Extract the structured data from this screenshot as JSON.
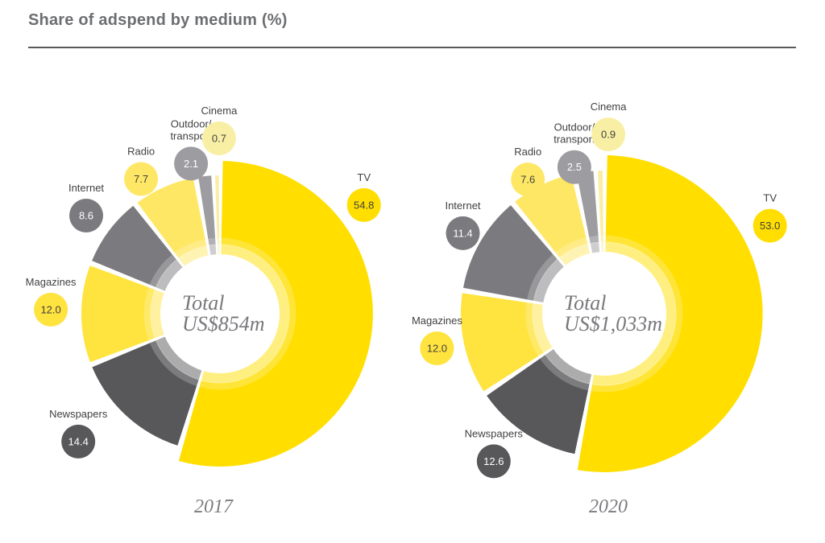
{
  "title": "Share of adspend by medium (%)",
  "styles": {
    "title_color": "#6D6E71",
    "rule_color": "#58595B",
    "center_text_color": "#77787B",
    "year_text_color": "#7B7C7F",
    "label_text_color": "#414141",
    "accent_yellow": "#FFDE00",
    "dark_gray": "#58585B"
  },
  "chart_data": [
    {
      "type": "pie",
      "subtype": "donut",
      "year_label": "2017",
      "center_label": {
        "line1": "Total",
        "line2": "US$854m"
      },
      "start_angle_deg": 0,
      "direction": "clockwise",
      "legend_position": "radial-callouts",
      "categories": [
        "TV",
        "Newspapers",
        "Magazines",
        "Internet",
        "Radio",
        "Outdoor/transport",
        "Cinema"
      ],
      "values": [
        54.8,
        14.4,
        12.0,
        8.6,
        7.7,
        2.1,
        0.7
      ],
      "value_labels": [
        "54.8",
        "14.4",
        "12.0",
        "8.6",
        "7.7",
        "2.1",
        "0.7"
      ],
      "colors": [
        "#FFDE00",
        "#58585B",
        "#FFE33E",
        "#7B7B7F",
        "#FFE766",
        "#9D9DA1",
        "#F9EFA4"
      ],
      "value_text_colors": [
        "#414141",
        "#FFFFFF",
        "#414141",
        "#FFFFFF",
        "#414141",
        "#FFFFFF",
        "#414141"
      ]
    },
    {
      "type": "pie",
      "subtype": "donut",
      "year_label": "2020",
      "center_label": {
        "line1": "Total",
        "line2": "US$1,033m"
      },
      "start_angle_deg": 0,
      "direction": "clockwise",
      "legend_position": "radial-callouts",
      "categories": [
        "TV",
        "Newspapers",
        "Magazines",
        "Internet",
        "Radio",
        "Outdoor/transport",
        "Cinema"
      ],
      "values": [
        53.0,
        12.6,
        12.0,
        11.4,
        7.6,
        2.5,
        0.9
      ],
      "value_labels": [
        "53.0",
        "12.6",
        "12.0",
        "11.4",
        "7.6",
        "2.5",
        "0.9"
      ],
      "colors": [
        "#FFDE00",
        "#58585B",
        "#FFE33E",
        "#7B7B7F",
        "#FFE766",
        "#9D9DA1",
        "#F9EFA4"
      ],
      "value_text_colors": [
        "#414141",
        "#FFFFFF",
        "#414141",
        "#FFFFFF",
        "#414141",
        "#FFFFFF",
        "#414141"
      ]
    }
  ]
}
